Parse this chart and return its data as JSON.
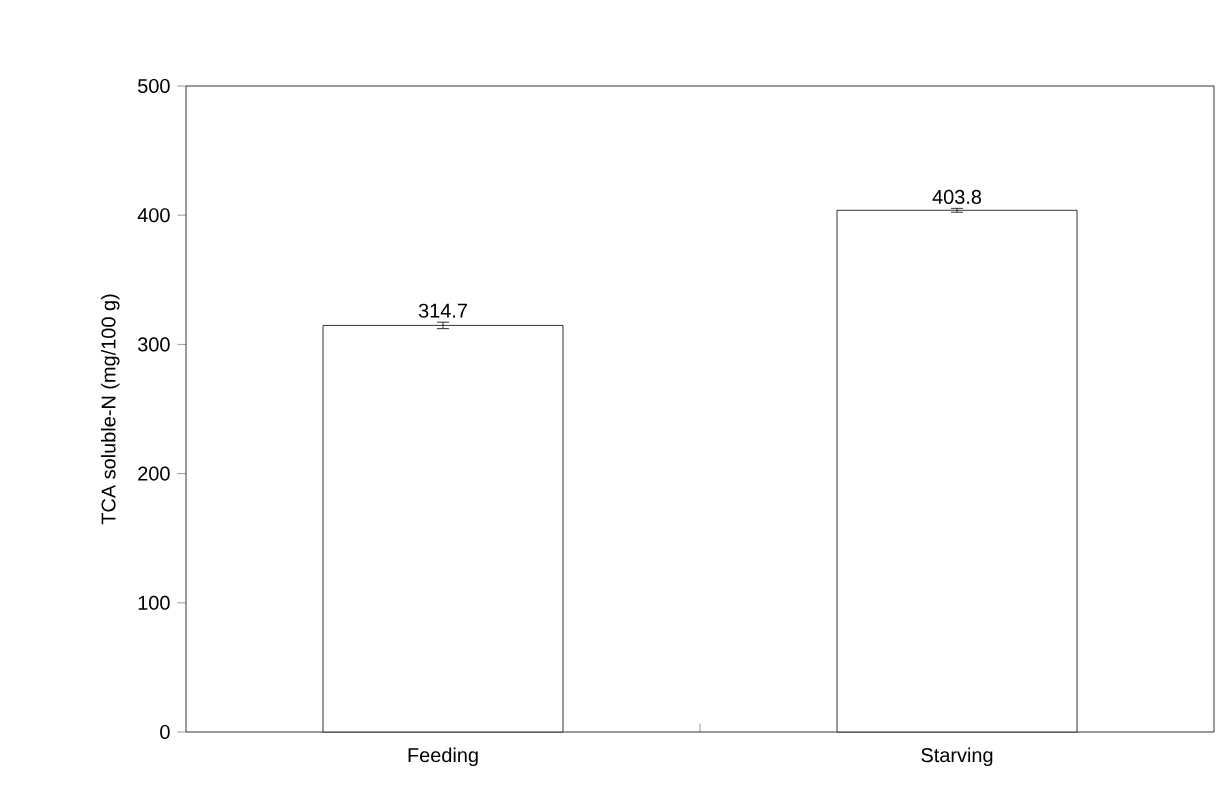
{
  "chart_data": {
    "type": "bar",
    "ylabel": "TCA soluble-N (mg/100 g)",
    "categories": [
      "Feeding",
      "Starving"
    ],
    "values": [
      314.7,
      403.8
    ],
    "errors": [
      2.5,
      1.5
    ],
    "color": "#ffffff",
    "data_labels": true,
    "ylim": [
      0,
      500
    ],
    "yticks": [
      0,
      100,
      200,
      300,
      400,
      500
    ]
  }
}
